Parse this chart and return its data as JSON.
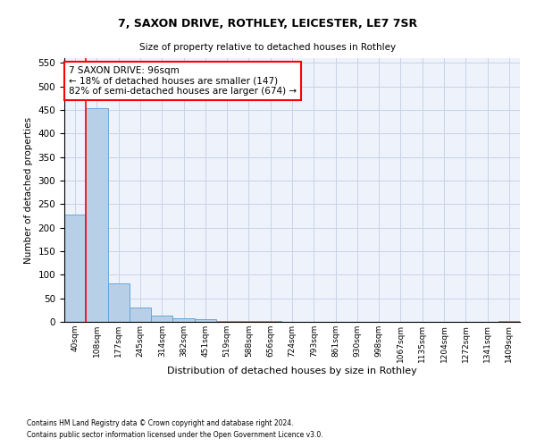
{
  "title_line1": "7, SAXON DRIVE, ROTHLEY, LEICESTER, LE7 7SR",
  "title_line2": "Size of property relative to detached houses in Rothley",
  "xlabel": "Distribution of detached houses by size in Rothley",
  "ylabel": "Number of detached properties",
  "categories": [
    "40sqm",
    "108sqm",
    "177sqm",
    "245sqm",
    "314sqm",
    "382sqm",
    "451sqm",
    "519sqm",
    "588sqm",
    "656sqm",
    "724sqm",
    "793sqm",
    "861sqm",
    "930sqm",
    "998sqm",
    "1067sqm",
    "1135sqm",
    "1204sqm",
    "1272sqm",
    "1341sqm",
    "1409sqm"
  ],
  "values": [
    227,
    453,
    82,
    30,
    13,
    8,
    5,
    2,
    1,
    1,
    0,
    0,
    0,
    0,
    0,
    0,
    0,
    0,
    0,
    0,
    1
  ],
  "bar_color": "#b8cfe8",
  "bar_edge_color": "#5a9fd4",
  "annotation_text": "7 SAXON DRIVE: 96sqm\n← 18% of detached houses are smaller (147)\n82% of semi-detached houses are larger (674) →",
  "annotation_box_color": "white",
  "annotation_box_edge_color": "red",
  "vline_color": "red",
  "ylim": [
    0,
    560
  ],
  "yticks": [
    0,
    50,
    100,
    150,
    200,
    250,
    300,
    350,
    400,
    450,
    500,
    550
  ],
  "footer_line1": "Contains HM Land Registry data © Crown copyright and database right 2024.",
  "footer_line2": "Contains public sector information licensed under the Open Government Licence v3.0.",
  "background_color": "#eef2fb"
}
